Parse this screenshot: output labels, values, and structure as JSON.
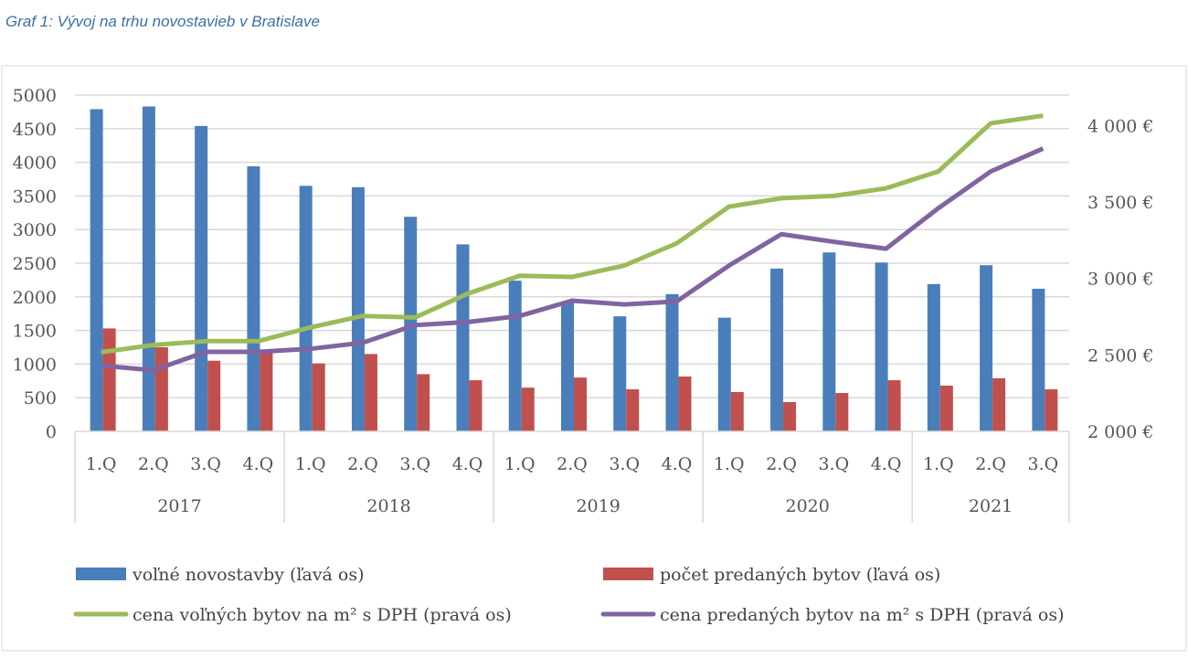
{
  "title": "Graf 1: Vývoj na trhu novostavieb v Bratislave",
  "chart_data": {
    "type": "bar+line",
    "title": "Graf 1: Vývoj na trhu novostavieb v Bratislave",
    "categories": [
      "1.Q",
      "2.Q",
      "3.Q",
      "4.Q",
      "1.Q",
      "2.Q",
      "3.Q",
      "4.Q",
      "1.Q",
      "2.Q",
      "3.Q",
      "4.Q",
      "1.Q",
      "2.Q",
      "3.Q",
      "4.Q",
      "1.Q",
      "2.Q",
      "3.Q"
    ],
    "years": [
      {
        "label": "2017",
        "count": 4
      },
      {
        "label": "2018",
        "count": 4
      },
      {
        "label": "2019",
        "count": 4
      },
      {
        "label": "2020",
        "count": 4
      },
      {
        "label": "2021",
        "count": 3
      }
    ],
    "left_axis": {
      "ylim": [
        0,
        5000
      ],
      "ticks": [
        "0",
        "500",
        "1000",
        "1500",
        "2000",
        "2500",
        "3000",
        "3500",
        "4000",
        "4500",
        "5000"
      ],
      "tick_values": [
        0,
        500,
        1000,
        1500,
        2000,
        2500,
        3000,
        3500,
        4000,
        4500,
        5000
      ]
    },
    "right_axis": {
      "ylim": [
        2000,
        4200
      ],
      "ticks": [
        "2 000 €",
        "2 500 €",
        "3 000 €",
        "3 500 €",
        "4 000 €"
      ],
      "tick_values": [
        2000,
        2500,
        3000,
        3500,
        4000
      ]
    },
    "grid": true,
    "legend_position": "bottom",
    "series": [
      {
        "name": "voľné novostavby (ľavá os)",
        "type": "bar",
        "axis": "left",
        "color": "#4a7ebb",
        "values": [
          4790,
          4830,
          4540,
          3940,
          3650,
          3630,
          3190,
          2780,
          2240,
          1930,
          1710,
          2040,
          1690,
          2420,
          2660,
          2510,
          2190,
          2470,
          2120
        ]
      },
      {
        "name": "počet predaných bytov (ľavá os)",
        "type": "bar",
        "axis": "left",
        "color": "#c0504d",
        "values": [
          1530,
          1250,
          1050,
          1190,
          1010,
          1150,
          850,
          760,
          650,
          800,
          625,
          815,
          585,
          435,
          570,
          760,
          680,
          790,
          625
        ]
      },
      {
        "name": "cena voľných bytov na m² s DPH (pravá os)",
        "type": "line",
        "axis": "right",
        "color": "#9bbb59",
        "values": [
          2518,
          2565,
          2590,
          2590,
          2680,
          2755,
          2745,
          2900,
          3018,
          3010,
          3085,
          3230,
          3470,
          3525,
          3540,
          3590,
          3700,
          4015,
          4065
        ]
      },
      {
        "name": "cena predaných bytov na m² s  DPH (pravá os)",
        "type": "line",
        "axis": "right",
        "color": "#8064a2",
        "values": [
          2430,
          2400,
          2520,
          2520,
          2540,
          2580,
          2695,
          2715,
          2755,
          2855,
          2830,
          2850,
          3085,
          3290,
          3240,
          3195,
          3460,
          3700,
          3850
        ]
      }
    ]
  }
}
